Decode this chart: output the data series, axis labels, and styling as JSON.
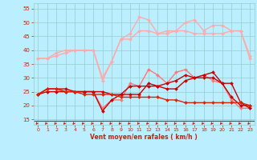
{
  "x": [
    0,
    1,
    2,
    3,
    4,
    5,
    6,
    7,
    8,
    9,
    10,
    11,
    12,
    13,
    14,
    15,
    16,
    17,
    18,
    19,
    20,
    21,
    22,
    23
  ],
  "series": [
    {
      "color": "#ffaaaa",
      "lw": 1.0,
      "marker": "D",
      "markersize": 2.0,
      "values": [
        37,
        37,
        39,
        40,
        40,
        40,
        40,
        30,
        36,
        44,
        44,
        47,
        47,
        46,
        46,
        47,
        47,
        46,
        46,
        46,
        46,
        47,
        47,
        37
      ]
    },
    {
      "color": "#ffaaaa",
      "lw": 1.0,
      "marker": "D",
      "markersize": 2.0,
      "values": [
        37,
        37,
        38,
        39,
        40,
        40,
        40,
        29,
        36,
        44,
        46,
        52,
        51,
        46,
        47,
        47,
        50,
        51,
        47,
        49,
        49,
        47,
        47,
        38
      ]
    },
    {
      "color": "#ff7777",
      "lw": 1.0,
      "marker": "D",
      "markersize": 2.0,
      "values": [
        24,
        26,
        26,
        25,
        25,
        25,
        25,
        19,
        22,
        22,
        28,
        27,
        33,
        31,
        28,
        32,
        33,
        30,
        31,
        29,
        28,
        22,
        19,
        19
      ]
    },
    {
      "color": "#cc0000",
      "lw": 1.0,
      "marker": "D",
      "markersize": 2.0,
      "values": [
        24,
        26,
        26,
        26,
        25,
        25,
        25,
        25,
        24,
        24,
        27,
        27,
        27,
        27,
        28,
        29,
        31,
        30,
        31,
        32,
        28,
        28,
        21,
        19
      ]
    },
    {
      "color": "#cc0000",
      "lw": 1.0,
      "marker": "D",
      "markersize": 2.0,
      "values": [
        24,
        25,
        25,
        25,
        25,
        25,
        25,
        18,
        22,
        24,
        24,
        24,
        28,
        27,
        26,
        26,
        29,
        30,
        30,
        30,
        28,
        23,
        20,
        20
      ]
    },
    {
      "color": "#dd2200",
      "lw": 1.0,
      "marker": "D",
      "markersize": 2.0,
      "values": [
        24,
        26,
        26,
        25,
        25,
        24,
        24,
        24,
        24,
        23,
        23,
        23,
        23,
        23,
        22,
        22,
        21,
        21,
        21,
        21,
        21,
        21,
        21,
        20
      ]
    }
  ],
  "bg_color": "#bbeeff",
  "grid_color": "#99cccc",
  "xlim": [
    -0.5,
    23.5
  ],
  "ylim": [
    13,
    57
  ],
  "yticks": [
    15,
    20,
    25,
    30,
    35,
    40,
    45,
    50,
    55
  ],
  "xticks": [
    0,
    1,
    2,
    3,
    4,
    5,
    6,
    7,
    8,
    9,
    10,
    11,
    12,
    13,
    14,
    15,
    16,
    17,
    18,
    19,
    20,
    21,
    22,
    23
  ],
  "xlabel": "Vent moyen/en rafales ( km/h )",
  "arrow_color": "#cc2200",
  "tick_color": "#cc2200",
  "label_color": "#cc2200",
  "hline_y": 14.5,
  "hline_color": "#cc2200"
}
